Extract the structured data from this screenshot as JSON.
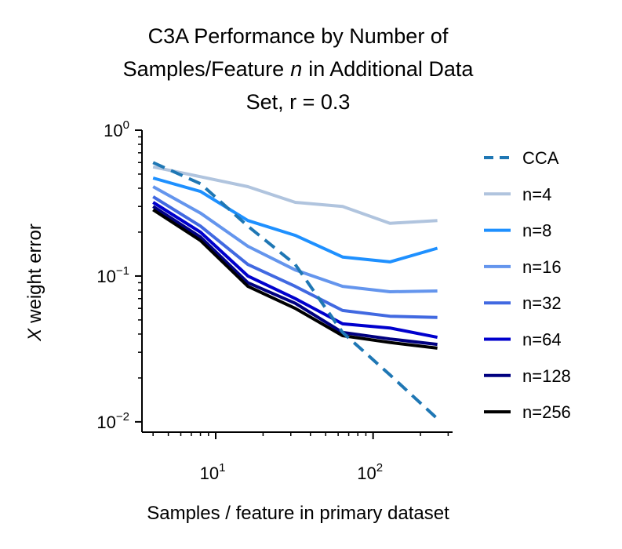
{
  "chart_data": {
    "type": "line",
    "title_lines": [
      "C3A Performance by Number of",
      "Samples/Feature",
      "n",
      "in Additional Data",
      "Set, r = 0.3"
    ],
    "xlabel": "Samples / feature in primary dataset",
    "ylabel_italic": "X",
    "ylabel_rest": "weight error",
    "xscale": "log",
    "yscale": "log",
    "xlim": [
      3.4,
      320
    ],
    "ylim": [
      0.0085,
      1.0
    ],
    "x_ticks": [
      {
        "value": 10,
        "base": "10",
        "exp": "1"
      },
      {
        "value": 100,
        "base": "10",
        "exp": "2"
      }
    ],
    "y_ticks": [
      {
        "value": 1.0,
        "base": "10",
        "exp": "0"
      },
      {
        "value": 0.1,
        "base": "10",
        "exp": "−1"
      },
      {
        "value": 0.01,
        "base": "10",
        "exp": "−2"
      }
    ],
    "x": [
      4,
      8,
      16,
      32,
      64,
      128,
      256
    ],
    "series": [
      {
        "name": "CCA",
        "color": "#1f77b4",
        "dashed": true,
        "values": [
          0.6,
          0.43,
          0.22,
          0.12,
          0.041,
          0.021,
          0.0105
        ]
      },
      {
        "name": "n=4",
        "color": "#b0c4de",
        "dashed": false,
        "values": [
          0.56,
          0.48,
          0.41,
          0.32,
          0.3,
          0.23,
          0.24
        ]
      },
      {
        "name": "n=8",
        "color": "#1e90ff",
        "dashed": false,
        "values": [
          0.47,
          0.38,
          0.24,
          0.19,
          0.135,
          0.125,
          0.155
        ]
      },
      {
        "name": "n=16",
        "color": "#6495ed",
        "dashed": false,
        "values": [
          0.41,
          0.27,
          0.16,
          0.11,
          0.085,
          0.078,
          0.079
        ]
      },
      {
        "name": "n=32",
        "color": "#4169e1",
        "dashed": false,
        "values": [
          0.35,
          0.22,
          0.12,
          0.085,
          0.058,
          0.053,
          0.052
        ]
      },
      {
        "name": "n=64",
        "color": "#0000cd",
        "dashed": false,
        "values": [
          0.32,
          0.2,
          0.1,
          0.07,
          0.047,
          0.044,
          0.038
        ]
      },
      {
        "name": "n=128",
        "color": "#000080",
        "dashed": false,
        "values": [
          0.3,
          0.185,
          0.09,
          0.065,
          0.041,
          0.037,
          0.034
        ]
      },
      {
        "name": "n=256",
        "color": "#000000",
        "dashed": false,
        "values": [
          0.285,
          0.175,
          0.085,
          0.06,
          0.039,
          0.035,
          0.032
        ]
      }
    ],
    "legend_location": "right"
  }
}
